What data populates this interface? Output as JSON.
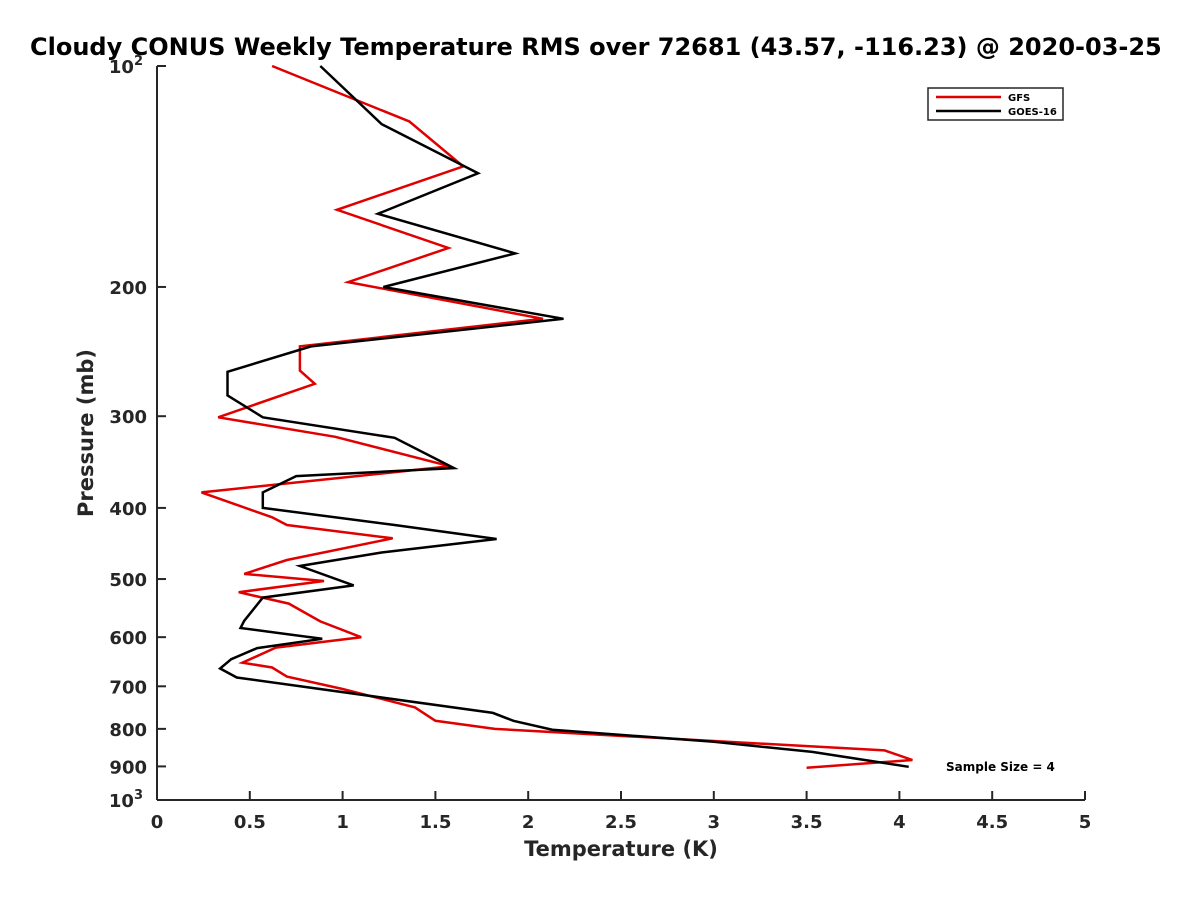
{
  "chart_data": {
    "type": "line",
    "title": "Cloudy CONUS Weekly Temperature RMS over 72681 (43.57, -116.23) @ 2020-03-25",
    "xlabel": "Temperature (K)",
    "ylabel": "Pressure (mb)",
    "xlim": [
      0,
      5
    ],
    "ylim": [
      100,
      1000
    ],
    "y_scale": "log",
    "y_reversed": true,
    "x_ticks": [
      "0",
      "0.5",
      "1",
      "1.5",
      "2",
      "2.5",
      "3",
      "3.5",
      "4",
      "4.5",
      "5"
    ],
    "y_ticks": [
      {
        "value": 100,
        "base": "10",
        "exp": "2"
      },
      {
        "value": 200,
        "label": "200"
      },
      {
        "value": 300,
        "label": "300"
      },
      {
        "value": 400,
        "label": "400"
      },
      {
        "value": 500,
        "label": "500"
      },
      {
        "value": 600,
        "label": "600"
      },
      {
        "value": 700,
        "label": "700"
      },
      {
        "value": 800,
        "label": "800"
      },
      {
        "value": 900,
        "label": "900"
      },
      {
        "value": 1000,
        "base": "10",
        "exp": "3"
      }
    ],
    "grid": false,
    "legend": "top-right",
    "annotation": "Sample Size = 4",
    "series": [
      {
        "name": "GFS",
        "color": "#e00000",
        "points": [
          [
            0.62,
            100
          ],
          [
            1.36,
            119
          ],
          [
            1.65,
            137
          ],
          [
            0.97,
            157
          ],
          [
            1.57,
            177
          ],
          [
            1.03,
            197
          ],
          [
            2.08,
            221
          ],
          [
            0.77,
            241
          ],
          [
            0.77,
            260
          ],
          [
            0.85,
            271
          ],
          [
            0.33,
            301
          ],
          [
            0.96,
            320
          ],
          [
            1.58,
            351
          ],
          [
            0.24,
            381
          ],
          [
            0.62,
            412
          ],
          [
            0.7,
            422
          ],
          [
            1.27,
            440
          ],
          [
            0.7,
            471
          ],
          [
            0.47,
            492
          ],
          [
            0.9,
            503
          ],
          [
            0.44,
            521
          ],
          [
            0.71,
            540
          ],
          [
            0.88,
            571
          ],
          [
            1.1,
            600
          ],
          [
            0.64,
            620
          ],
          [
            0.46,
            650
          ],
          [
            0.62,
            660
          ],
          [
            0.7,
            679
          ],
          [
            1.0,
            706
          ],
          [
            1.39,
            748
          ],
          [
            1.5,
            780
          ],
          [
            1.82,
            800
          ],
          [
            3.92,
            856
          ],
          [
            4.07,
            882
          ],
          [
            3.5,
            904
          ]
        ]
      },
      {
        "name": "GOES-16",
        "color": "#000000",
        "points": [
          [
            0.88,
            100
          ],
          [
            1.21,
            120
          ],
          [
            1.73,
            140
          ],
          [
            1.19,
            159
          ],
          [
            1.93,
            180
          ],
          [
            1.22,
            200
          ],
          [
            2.19,
            221
          ],
          [
            0.83,
            241
          ],
          [
            0.38,
            261
          ],
          [
            0.38,
            281
          ],
          [
            0.57,
            301
          ],
          [
            1.28,
            321
          ],
          [
            1.6,
            353
          ],
          [
            0.75,
            362
          ],
          [
            0.57,
            381
          ],
          [
            0.57,
            400
          ],
          [
            1.28,
            422
          ],
          [
            1.83,
            441
          ],
          [
            1.21,
            460
          ],
          [
            0.77,
            480
          ],
          [
            1.06,
            510
          ],
          [
            0.57,
            530
          ],
          [
            0.47,
            570
          ],
          [
            0.45,
            583
          ],
          [
            0.89,
            603
          ],
          [
            0.54,
            621
          ],
          [
            0.4,
            643
          ],
          [
            0.34,
            662
          ],
          [
            0.43,
            681
          ],
          [
            1.81,
            761
          ],
          [
            1.92,
            780
          ],
          [
            2.13,
            802
          ],
          [
            3.0,
            833
          ],
          [
            3.53,
            860
          ],
          [
            4.05,
            901
          ]
        ]
      }
    ]
  }
}
